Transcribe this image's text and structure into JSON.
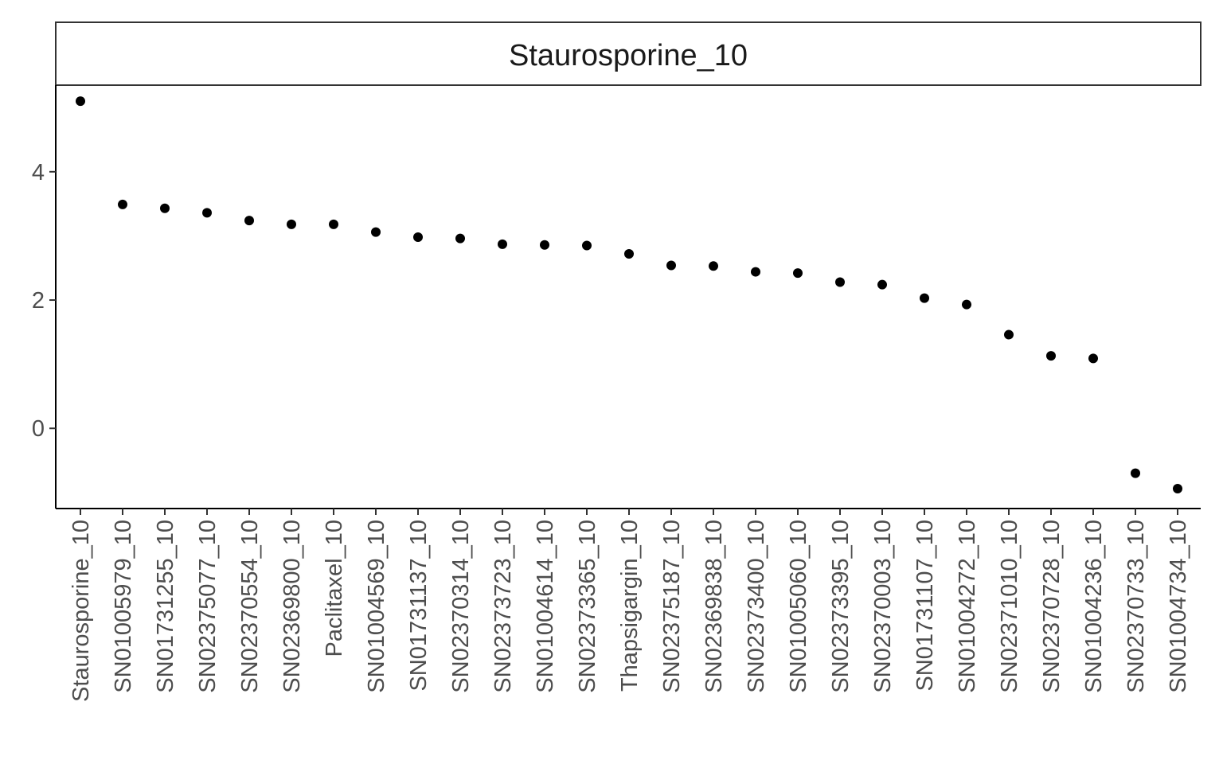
{
  "chart_data": {
    "type": "scatter",
    "title": "Staurosporine_10",
    "xlabel": "",
    "ylabel": "",
    "ylim": [
      -1.25,
      5.35
    ],
    "yticks": [
      "4",
      "2",
      "0"
    ],
    "yticks_values": [
      4,
      2,
      0
    ],
    "grid": false,
    "legend": "none",
    "point_color": "#000000",
    "categories": [
      "Staurosporine_10",
      "SN01005979_10",
      "SN01731255_10",
      "SN02375077_10",
      "SN02370554_10",
      "SN02369800_10",
      "Paclitaxel_10",
      "SN01004569_10",
      "SN01731137_10",
      "SN02370314_10",
      "SN02373723_10",
      "SN01004614_10",
      "SN02373365_10",
      "Thapsigargin_10",
      "SN02375187_10",
      "SN02369838_10",
      "SN02373400_10",
      "SN01005060_10",
      "SN02373395_10",
      "SN02370003_10",
      "SN01731107_10",
      "SN01004272_10",
      "SN02371010_10",
      "SN02370728_10",
      "SN01004236_10",
      "SN02370733_10",
      "SN01004734_10"
    ],
    "values": [
      5.1,
      3.49,
      3.43,
      3.36,
      3.24,
      3.18,
      3.18,
      3.06,
      2.98,
      2.96,
      2.87,
      2.86,
      2.85,
      2.72,
      2.54,
      2.53,
      2.44,
      2.42,
      2.28,
      2.24,
      2.03,
      1.93,
      1.46,
      1.13,
      1.09,
      -0.7,
      -0.94
    ]
  }
}
